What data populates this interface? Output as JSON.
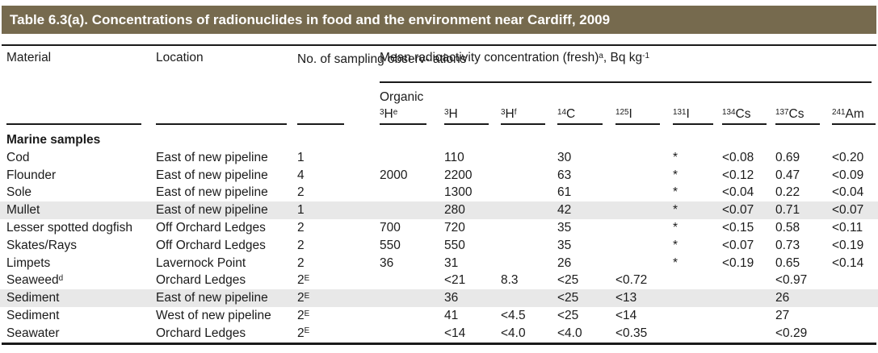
{
  "title": "Table 6.3(a). Concentrations of radionuclides in food and the environment near Cardiff, 2009",
  "colors": {
    "title_bar": "#766a4e",
    "title_text": "#ffffff",
    "row_shade": "#e8e8e8",
    "text": "#1b1b1b",
    "rule": "#1a1a1a"
  },
  "table": {
    "header": {
      "material": "Material",
      "location": "Location",
      "observations": "No. of sampling observ- ations",
      "group": "Mean radioactivity concentration (fresh)^{a}, Bq kg^{-1}",
      "organic_label": "Organic",
      "isotopes": [
        "^{3}H^{e}",
        "^{3}H",
        "^{3}H^{f}",
        "^{14}C",
        "^{125}I",
        "^{131}I",
        "^{134}Cs",
        "^{137}Cs",
        "^{241}Am"
      ]
    },
    "section_label": "Marine samples",
    "rows": [
      {
        "material": "Cod",
        "location": "East of new pipeline",
        "observations": "1",
        "shaded": false,
        "values": [
          "",
          "110",
          "",
          "30",
          "",
          "*",
          "<0.08",
          "0.69",
          "<0.20"
        ]
      },
      {
        "material": "Flounder",
        "location": "East of new pipeline",
        "observations": "4",
        "shaded": false,
        "values": [
          "2000",
          "2200",
          "",
          "63",
          "",
          "*",
          "<0.12",
          "0.47",
          "<0.09"
        ]
      },
      {
        "material": "Sole",
        "location": "East of new pipeline",
        "observations": "2",
        "shaded": false,
        "values": [
          "",
          "1300",
          "",
          "61",
          "",
          "*",
          "<0.04",
          "0.22",
          "<0.04"
        ]
      },
      {
        "material": "Mullet",
        "location": "East of new pipeline",
        "observations": "1",
        "shaded": true,
        "values": [
          "",
          "280",
          "",
          "42",
          "",
          "*",
          "<0.07",
          "0.71",
          "<0.07"
        ]
      },
      {
        "material": "Lesser spotted dogfish",
        "location": "Off Orchard Ledges",
        "observations": "2",
        "shaded": false,
        "values": [
          "700",
          "720",
          "",
          "35",
          "",
          "*",
          "<0.15",
          "0.58",
          "<0.11"
        ]
      },
      {
        "material": "Skates/Rays",
        "location": "Off Orchard Ledges",
        "observations": "2",
        "shaded": false,
        "values": [
          "550",
          "550",
          "",
          "35",
          "",
          "*",
          "<0.07",
          "0.73",
          "<0.19"
        ]
      },
      {
        "material": "Limpets",
        "location": "Lavernock Point",
        "observations": "2",
        "shaded": false,
        "values": [
          "36",
          "31",
          "",
          "26",
          "",
          "*",
          "<0.19",
          "0.65",
          "<0.14"
        ]
      },
      {
        "material": "Seaweed^{d}",
        "location": "Orchard Ledges",
        "observations": "2^{E}",
        "shaded": false,
        "values": [
          "",
          "<21",
          "8.3",
          "<25",
          "<0.72",
          "",
          "",
          "<0.97",
          ""
        ]
      },
      {
        "material": "Sediment",
        "location": "East of new pipeline",
        "observations": "2^{E}",
        "shaded": true,
        "values": [
          "",
          "36",
          "",
          "<25",
          "<13",
          "",
          "",
          "26",
          ""
        ]
      },
      {
        "material": "Sediment",
        "location": "West of new pipeline",
        "observations": "2^{E}",
        "shaded": false,
        "values": [
          "",
          "41",
          "<4.5",
          "<25",
          "<14",
          "",
          "",
          "27",
          ""
        ]
      },
      {
        "material": "Seawater",
        "location": "Orchard Ledges",
        "observations": "2^{E}",
        "shaded": false,
        "values": [
          "",
          "<14",
          "<4.0",
          "<4.0",
          "<0.35",
          "",
          "",
          "<0.29",
          ""
        ]
      }
    ]
  }
}
